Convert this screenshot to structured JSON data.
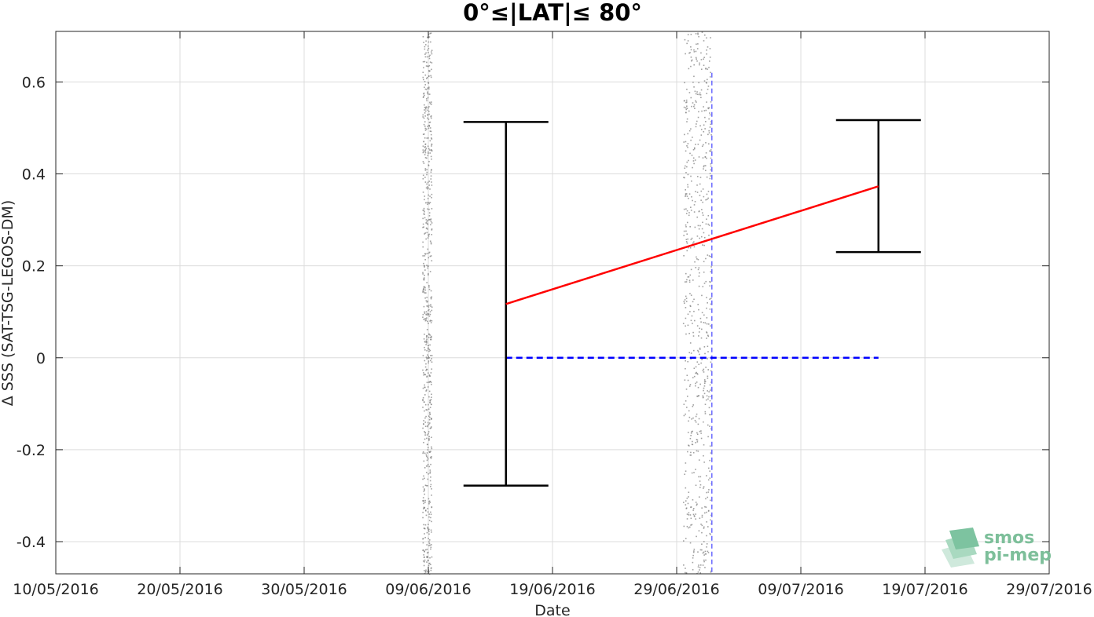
{
  "chart_data": {
    "type": "scatter",
    "title": "0°≤|LAT|≤ 80°",
    "xlabel": "Date",
    "ylabel": "Δ SSS (SAT-TSG-LEGOS-DM)",
    "xlim": [
      "2016-05-10",
      "2016-07-29"
    ],
    "ylim": [
      -0.47,
      0.71
    ],
    "x_ticks": [
      "10/05/2016",
      "20/05/2016",
      "30/05/2016",
      "09/06/2016",
      "19/06/2016",
      "29/06/2016",
      "09/07/2016",
      "19/07/2016",
      "29/07/2016"
    ],
    "y_ticks": [
      0.6,
      0.4,
      0.2,
      0,
      -0.2,
      -0.4
    ],
    "y_tick_labels": [
      "0.6",
      "0.4",
      "0.2",
      "0",
      "-0.2",
      "-0.4"
    ],
    "grid": true,
    "scatter_clusters": [
      {
        "x_range": [
          "2016-06-08T12:00",
          "2016-06-09T06:00"
        ],
        "y_range": [
          -0.47,
          0.71
        ]
      },
      {
        "x_range": [
          "2016-06-29T12:00",
          "2016-07-01T18:00"
        ],
        "y_range": [
          -0.47,
          0.71
        ]
      }
    ],
    "error_bars": [
      {
        "x": "2016-06-15T06:00",
        "center": 0.117,
        "upper": 0.513,
        "lower": -0.278
      },
      {
        "x": "2016-07-15T06:00",
        "center": 0.373,
        "upper": 0.517,
        "lower": 0.23
      }
    ],
    "trend_line": {
      "x": [
        "2016-06-15T06:00",
        "2016-07-15T06:00"
      ],
      "y": [
        0.117,
        0.373
      ],
      "color": "#ff0000"
    },
    "zero_line": {
      "x": [
        "2016-06-15T06:00",
        "2016-07-15T06:00"
      ],
      "y": [
        0,
        0
      ],
      "color": "#0000ff",
      "style": "dashed"
    },
    "vertical_marker": {
      "x": "2016-07-01T20:00",
      "y_range": [
        -0.47,
        0.62
      ],
      "color": "#6a6aff",
      "style": "dashed"
    },
    "colors": {
      "scatter": "#808080",
      "error_bar": "#000000"
    }
  },
  "logo": {
    "line1": "smos",
    "line2": "pi-mep"
  }
}
